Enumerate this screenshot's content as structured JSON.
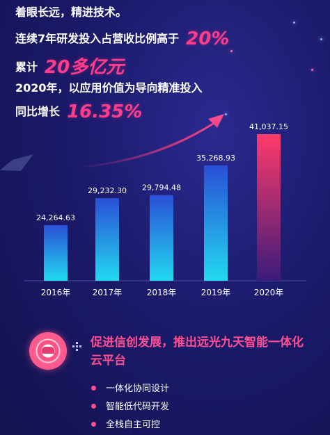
{
  "intro": {
    "line1": "着眼长远，精进技术。",
    "line2": "连续7年研发投入占营收比例高于",
    "line2_value": "20%",
    "line3": "累计",
    "line3_value": "20多亿元",
    "line4": "2020年，以应用价值为导向精准投入",
    "line5": "同比增长",
    "line5_value": "16.35%"
  },
  "chart_data": {
    "type": "bar",
    "categories": [
      "2016年",
      "2017年",
      "2018年",
      "2019年",
      "2020年"
    ],
    "values": [
      24264.63,
      29232.3,
      29794.48,
      35268.93,
      41037.15
    ],
    "value_labels": [
      "24,264.63",
      "29,232.30",
      "29,794.48",
      "35,268.93",
      "41,037.15"
    ],
    "ylim": [
      14000,
      41037.15
    ],
    "grid": false,
    "legend": "none",
    "highlight_index": 4,
    "colors": {
      "normal_top": "#2a4fd6",
      "normal_bottom": "#22d9f0",
      "highlight_top": "#ff3a6a",
      "highlight_bottom": "#3b1b7a",
      "arrow": "#ff3d7f"
    }
  },
  "platform": {
    "title": "促进信创发展，推出远光九天智能一体化云平台",
    "items": [
      "一体化协同设计",
      "智能低代码开发",
      "全栈自主可控"
    ]
  }
}
